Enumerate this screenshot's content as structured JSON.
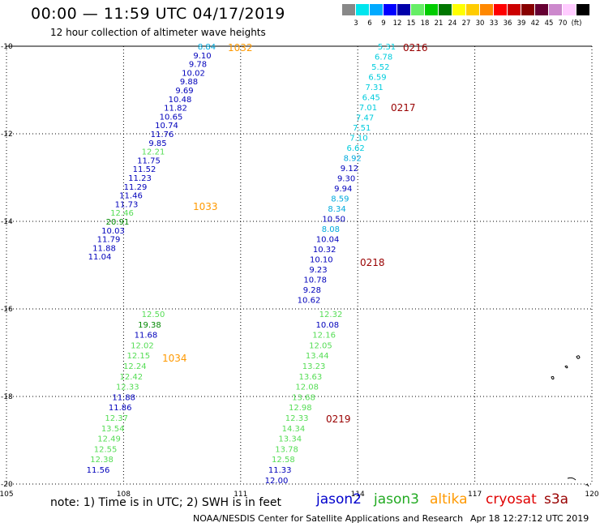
{
  "title": "00:00 — 11:59 UTC 04/17/2019",
  "subtitle": "12 hour collection of altimeter wave heights",
  "note": "note: 1) Time is in UTC; 2) SWH is in feet",
  "credit": "NOAA/NESDIS Center for Satellite Applications and Research",
  "timestamp": "Apr 18 12:27:12 UTC 2019",
  "satellites": [
    {
      "name": "jason2",
      "color": "#0000cc"
    },
    {
      "name": "jason3",
      "color": "#22aa22"
    },
    {
      "name": "altika",
      "color": "#ff9900"
    },
    {
      "name": "cryosat",
      "color": "#e00000"
    },
    {
      "name": "s3a",
      "color": "#990000"
    }
  ],
  "scale": {
    "colors": [
      "#888888",
      "#00e5ee",
      "#00aaff",
      "#0000ff",
      "#0000aa",
      "#66ee66",
      "#00cc00",
      "#007700",
      "#ffff00",
      "#ffcc00",
      "#ff8800",
      "#ff0000",
      "#cc0000",
      "#880000",
      "#660033",
      "#cc88cc",
      "#ffccff",
      "#000000"
    ],
    "labels": [
      "3",
      "6",
      "9",
      "12",
      "15",
      "18",
      "21",
      "24",
      "27",
      "30",
      "33",
      "36",
      "39",
      "42",
      "45",
      "70",
      "(ft)"
    ],
    "unit": "(ft)"
  },
  "axes": {
    "lon_ticks": [
      "105",
      "108",
      "111",
      "114",
      "117",
      "120"
    ],
    "lat_ticks": [
      "-10",
      "-12",
      "-14",
      "-16",
      "-18",
      "-20"
    ]
  },
  "tracks": [
    {
      "id": "1032",
      "label_color": "#ff9900",
      "points": [
        [
          "8.84",
          "#00aadd"
        ],
        [
          "9.10",
          "#0000bb"
        ],
        [
          "9.78",
          "#0000bb"
        ],
        [
          "10.02",
          "#0000bb"
        ],
        [
          "9.88",
          "#0000bb"
        ],
        [
          "9.69",
          "#0000bb"
        ],
        [
          "10.48",
          "#0000bb"
        ],
        [
          "11.82",
          "#0000bb"
        ],
        [
          "10.65",
          "#0000bb"
        ],
        [
          "10.74",
          "#0000bb"
        ],
        [
          "11.76",
          "#0000bb"
        ],
        [
          "9.85",
          "#0000bb"
        ],
        [
          "12.21",
          "#55dd55"
        ],
        [
          "11.75",
          "#0000bb"
        ],
        [
          "11.52",
          "#0000bb"
        ],
        [
          "11.23",
          "#0000bb"
        ],
        [
          "11.29",
          "#0000bb"
        ],
        [
          "11.46",
          "#0000bb"
        ],
        [
          "11.73",
          "#0000bb"
        ],
        [
          "12.46",
          "#55dd55"
        ],
        [
          "20.91",
          "#008800"
        ],
        [
          "10.03",
          "#0000bb"
        ],
        [
          "11.79",
          "#0000bb"
        ],
        [
          "11.88",
          "#0000bb"
        ],
        [
          "11.04",
          "#0000bb"
        ]
      ]
    },
    {
      "id": "1033",
      "label_color": "#ff9900"
    },
    {
      "id": "1034",
      "label_color": "#ff9900",
      "points": [
        [
          "12.50",
          "#55dd55"
        ],
        [
          "19.38",
          "#008800"
        ],
        [
          "11.68",
          "#0000bb"
        ],
        [
          "12.02",
          "#55dd55"
        ],
        [
          "12.15",
          "#55dd55"
        ],
        [
          "12.24",
          "#55dd55"
        ],
        [
          "12.42",
          "#55dd55"
        ],
        [
          "12.33",
          "#55dd55"
        ],
        [
          "11.88",
          "#0000bb"
        ],
        [
          "11.86",
          "#0000bb"
        ],
        [
          "12.37",
          "#55dd55"
        ],
        [
          "13.54",
          "#55dd55"
        ],
        [
          "12.49",
          "#55dd55"
        ],
        [
          "12.55",
          "#55dd55"
        ],
        [
          "12.38",
          "#55dd55"
        ],
        [
          "11.56",
          "#0000bb"
        ]
      ]
    },
    {
      "id": "0216",
      "label_color": "#990000",
      "points": [
        [
          "5.31",
          "#00ccdd"
        ],
        [
          "6.78",
          "#00ccdd"
        ],
        [
          "5.52",
          "#00ccdd"
        ],
        [
          "6.59",
          "#00ccdd"
        ],
        [
          "7.31",
          "#00ccdd"
        ],
        [
          "6.45",
          "#00ccdd"
        ],
        [
          "7.01",
          "#00ccdd"
        ],
        [
          "7.47",
          "#00ccdd"
        ],
        [
          "7.51",
          "#00ccdd"
        ],
        [
          "7.10",
          "#00ccdd"
        ],
        [
          "6.62",
          "#00ccdd"
        ],
        [
          "8.92",
          "#00aadd"
        ],
        [
          "9.12",
          "#0000bb"
        ],
        [
          "9.30",
          "#0000bb"
        ],
        [
          "9.94",
          "#0000bb"
        ],
        [
          "8.59",
          "#00aadd"
        ],
        [
          "8.34",
          "#00aadd"
        ],
        [
          "10.50",
          "#0000bb"
        ],
        [
          "8.08",
          "#00aadd"
        ],
        [
          "10.04",
          "#0000bb"
        ],
        [
          "10.32",
          "#0000bb"
        ],
        [
          "10.10",
          "#0000bb"
        ],
        [
          "9.23",
          "#0000bb"
        ],
        [
          "10.78",
          "#0000bb"
        ],
        [
          "9.28",
          "#0000bb"
        ],
        [
          "10.62",
          "#0000bb"
        ]
      ]
    },
    {
      "id": "0217",
      "label_color": "#990000"
    },
    {
      "id": "0218",
      "label_color": "#990000"
    },
    {
      "id": "0219",
      "label_color": "#990000",
      "points": [
        [
          "12.32",
          "#55dd55"
        ],
        [
          "10.08",
          "#0000bb"
        ],
        [
          "12.16",
          "#55dd55"
        ],
        [
          "12.05",
          "#55dd55"
        ],
        [
          "13.44",
          "#55dd55"
        ],
        [
          "13.23",
          "#55dd55"
        ],
        [
          "13.63",
          "#55dd55"
        ],
        [
          "12.08",
          "#55dd55"
        ],
        [
          "13.68",
          "#55dd55"
        ],
        [
          "12.98",
          "#55dd55"
        ],
        [
          "12.33",
          "#55dd55"
        ],
        [
          "14.34",
          "#55dd55"
        ],
        [
          "13.34",
          "#55dd55"
        ],
        [
          "13.78",
          "#55dd55"
        ],
        [
          "12.58",
          "#55dd55"
        ],
        [
          "11.33",
          "#0000bb"
        ],
        [
          "12.00",
          "#0000bb"
        ]
      ]
    }
  ]
}
